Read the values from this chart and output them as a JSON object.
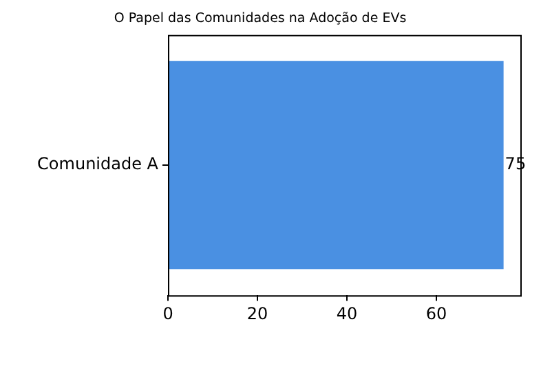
{
  "chart_data": {
    "type": "bar",
    "orientation": "horizontal",
    "title": "O Papel das Comunidades na Adoção de EVs",
    "categories": [
      "Comunidade A"
    ],
    "values": [
      75
    ],
    "color": "#4a90e2",
    "xlim": [
      0,
      78.75
    ],
    "xticks": [
      0,
      20,
      40,
      60
    ],
    "grid": false,
    "legend": false,
    "data_labels": true
  }
}
